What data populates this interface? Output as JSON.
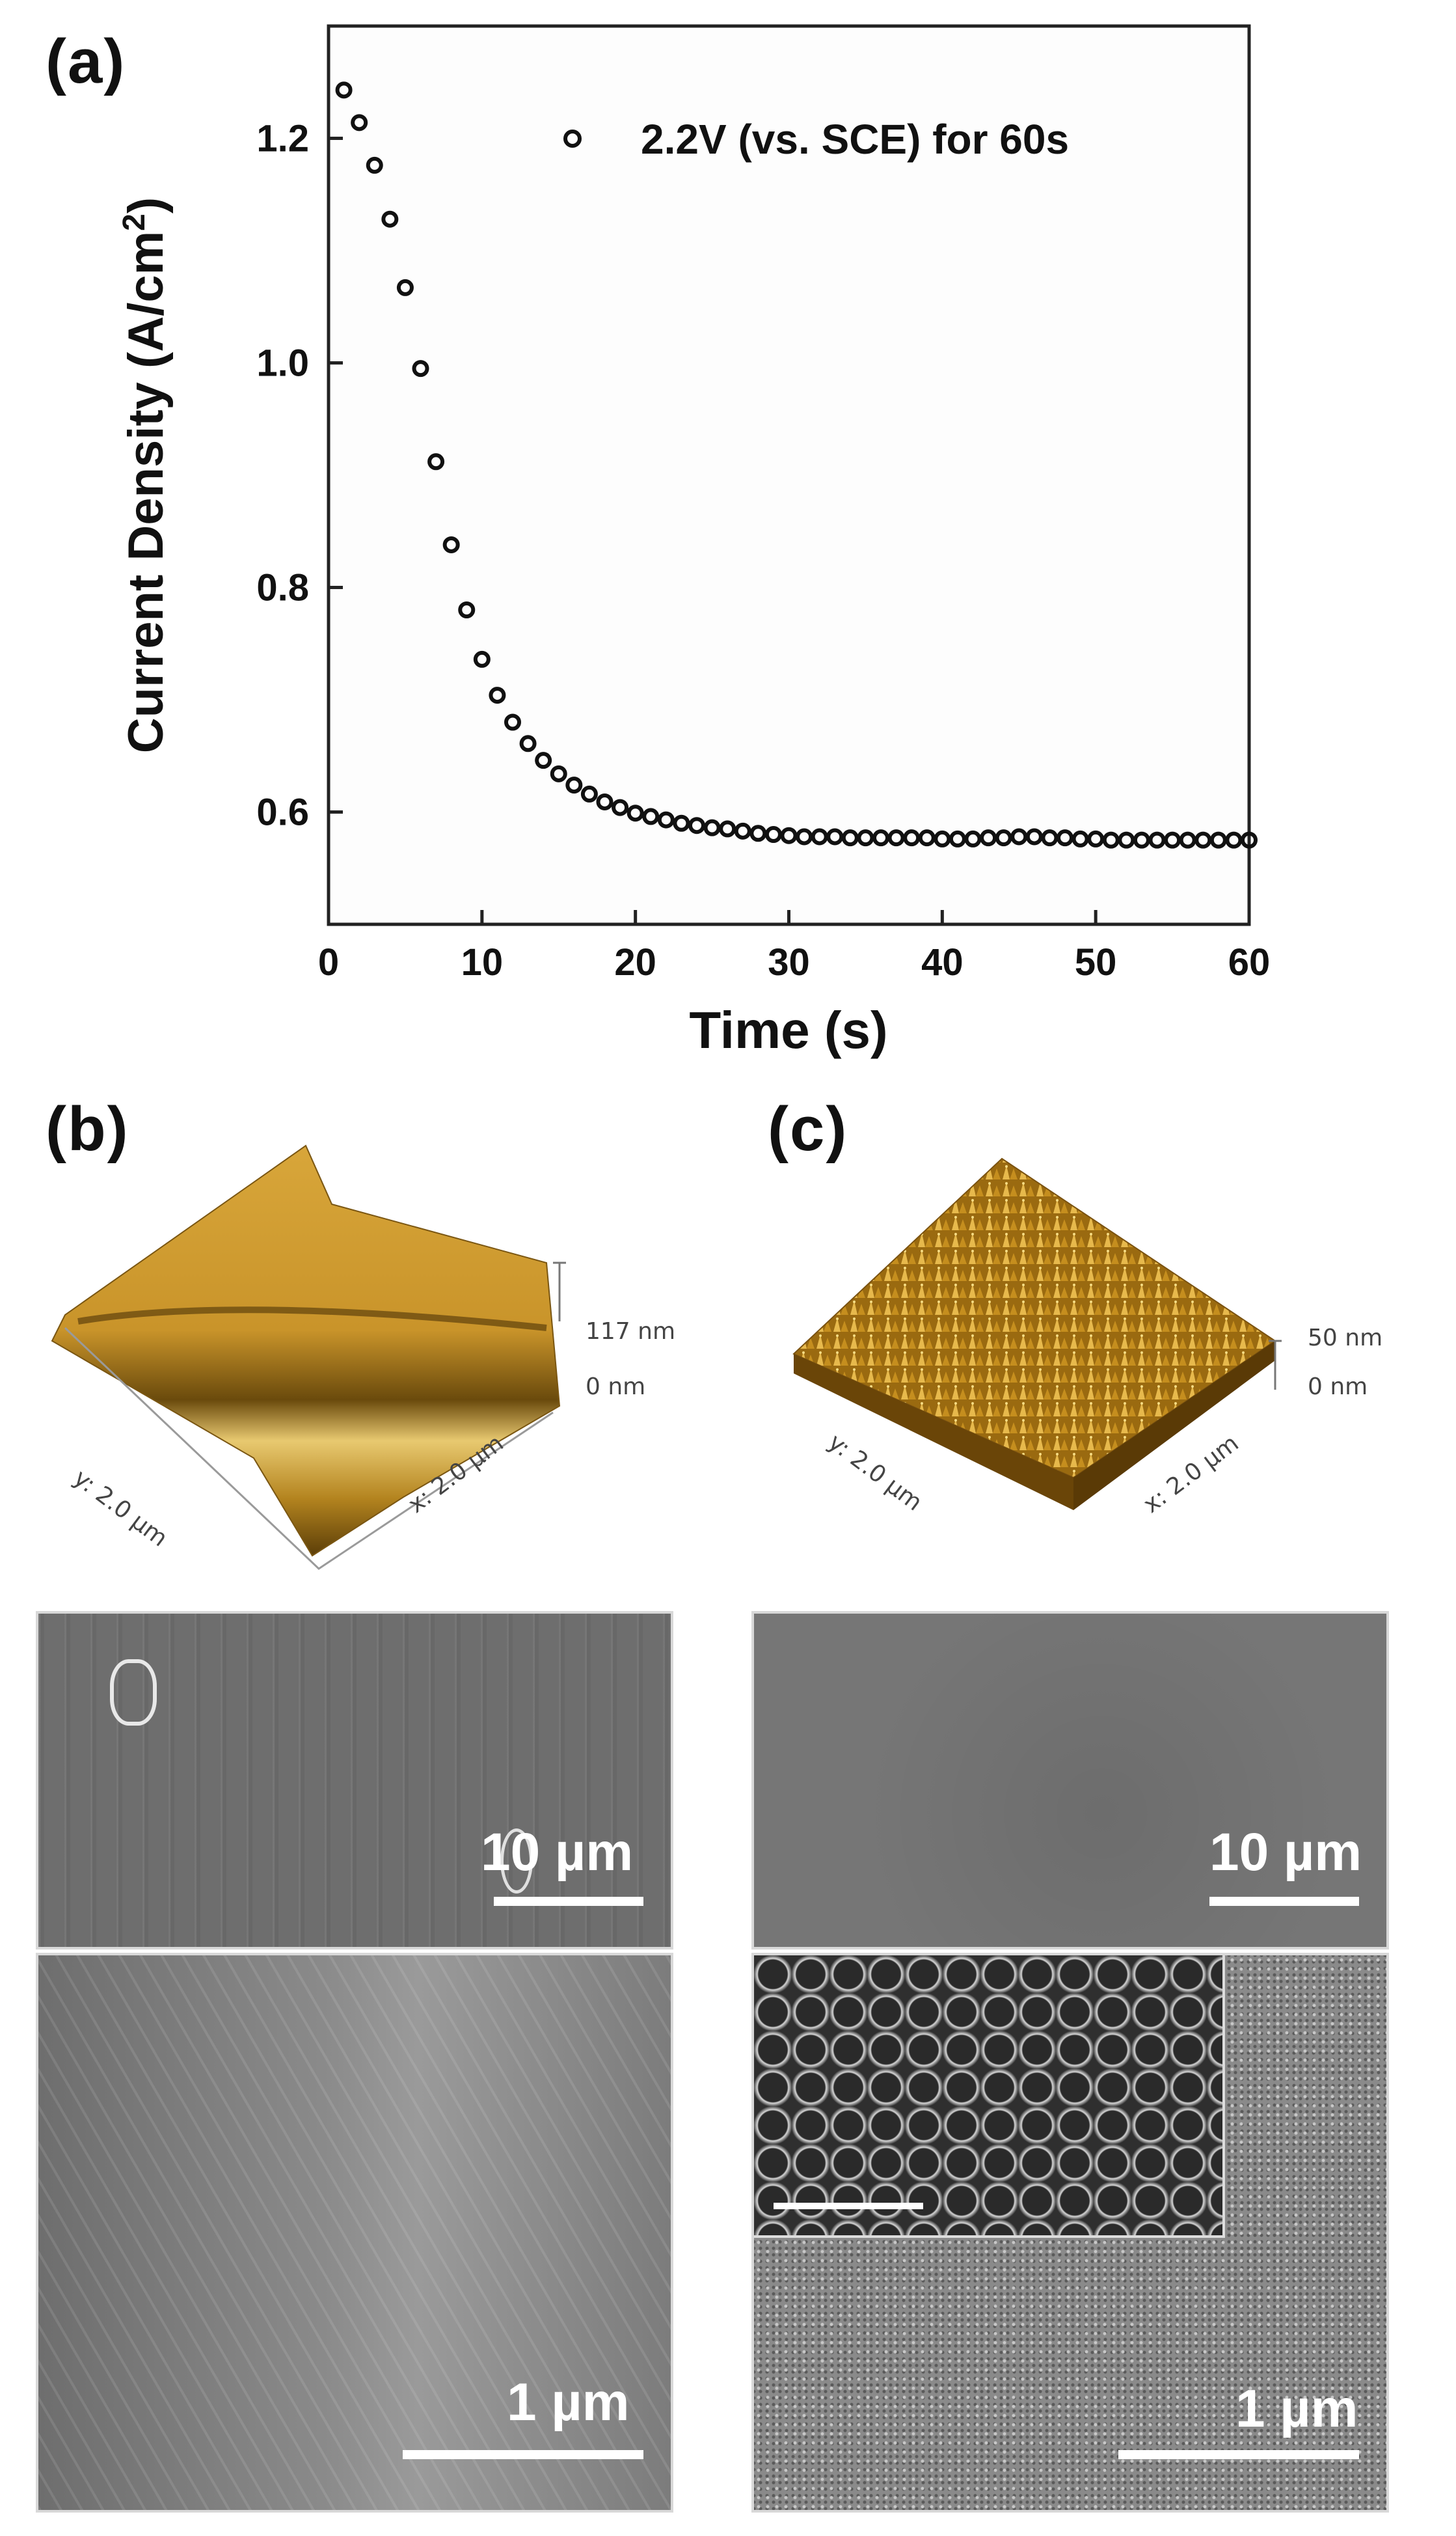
{
  "panels": {
    "a": "(a)",
    "b": "(b)",
    "c": "(c)"
  },
  "chart_data": {
    "type": "scatter",
    "title": "",
    "xlabel": "Time (s)",
    "ylabel": "Current Density (A/cm",
    "ylabel_sup": "2",
    "ylabel_end": ")",
    "xlim": [
      0,
      60
    ],
    "ylim": [
      0.5,
      1.3
    ],
    "xticks": [
      0,
      10,
      20,
      30,
      40,
      50,
      60
    ],
    "xtick_labels": [
      "0",
      "10",
      "20",
      "30",
      "40",
      "50",
      "60"
    ],
    "yticks": [
      0.6,
      0.8,
      1.0,
      1.2
    ],
    "ytick_labels": [
      "0.6",
      "0.8",
      "1.0",
      "1.2"
    ],
    "grid": false,
    "legend_position": "top-right",
    "series": [
      {
        "name": "2.2V (vs. SCE) for 60s",
        "marker": "open-circle",
        "color": "#111111",
        "x": [
          1,
          2,
          3,
          4,
          5,
          6,
          7,
          8,
          9,
          10,
          11,
          12,
          13,
          14,
          15,
          16,
          17,
          18,
          19,
          20,
          21,
          22,
          23,
          24,
          25,
          26,
          27,
          28,
          29,
          30,
          31,
          32,
          33,
          34,
          35,
          36,
          37,
          38,
          39,
          40,
          41,
          42,
          43,
          44,
          45,
          46,
          47,
          48,
          49,
          50,
          51,
          52,
          53,
          54,
          55,
          56,
          57,
          58,
          59,
          60
        ],
        "y": [
          1.243,
          1.214,
          1.176,
          1.128,
          1.067,
          0.995,
          0.912,
          0.838,
          0.78,
          0.736,
          0.704,
          0.68,
          0.661,
          0.646,
          0.634,
          0.624,
          0.616,
          0.609,
          0.604,
          0.599,
          0.596,
          0.593,
          0.59,
          0.588,
          0.586,
          0.585,
          0.583,
          0.581,
          0.58,
          0.579,
          0.578,
          0.578,
          0.578,
          0.577,
          0.577,
          0.577,
          0.577,
          0.577,
          0.577,
          0.576,
          0.576,
          0.576,
          0.577,
          0.577,
          0.578,
          0.578,
          0.577,
          0.577,
          0.576,
          0.576,
          0.575,
          0.575,
          0.575,
          0.575,
          0.575,
          0.575,
          0.575,
          0.575,
          0.575,
          0.575
        ]
      }
    ]
  },
  "afm_b": {
    "z_max": "117 nm",
    "z_min": "0 nm",
    "y_axis": "y: 2.0 µm",
    "x_axis": "x: 2.0 µm",
    "colors": {
      "light": "#e6c26a",
      "mid": "#b98a22",
      "dark": "#6a4a0c"
    }
  },
  "afm_c": {
    "z_max": "50 nm",
    "z_min": "0 nm",
    "y_axis": "y: 2.0 µm",
    "x_axis": "x: 2.0 µm"
  },
  "sem": {
    "b_top_scale": "10 µm",
    "b_bottom_scale": "1 µm",
    "c_top_scale": "10 µm",
    "c_bottom_scale": "1 µm"
  }
}
